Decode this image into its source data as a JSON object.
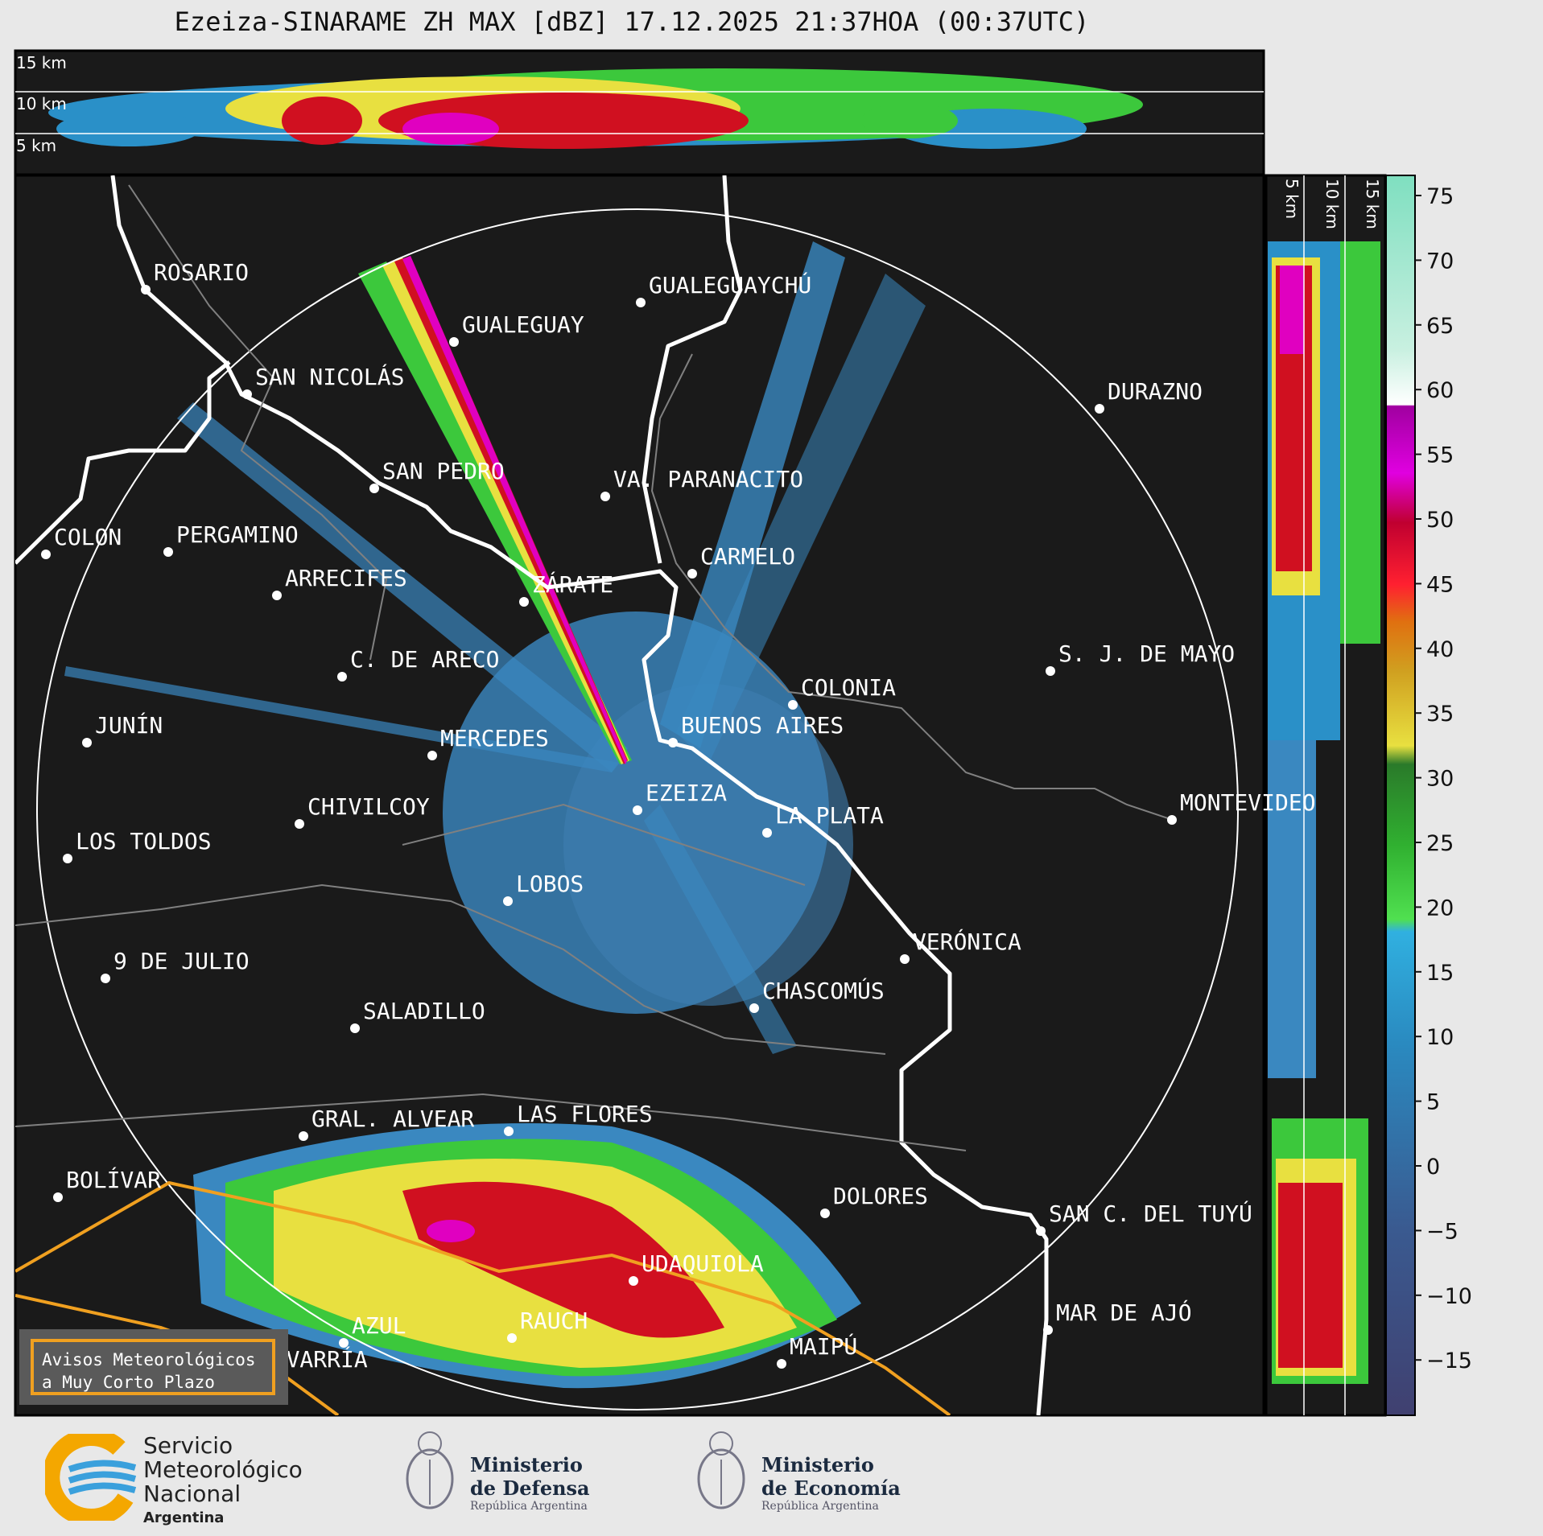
{
  "title": "Ezeiza-SINARAME ZH MAX [dBZ] 17.12.2025 21:37HOA (00:37UTC)",
  "top_panel": {
    "height_labels": [
      "15 km",
      "10 km",
      "5 km"
    ]
  },
  "side_panel": {
    "height_labels": [
      "5 km",
      "10 km",
      "15 km"
    ]
  },
  "colorbar": {
    "unit": "dBZ",
    "ticks": [
      "75",
      "70",
      "65",
      "60",
      "55",
      "50",
      "45",
      "40",
      "35",
      "30",
      "25",
      "20",
      "15",
      "10",
      "5",
      "0",
      "−5",
      "−10",
      "−15"
    ]
  },
  "cities": [
    {
      "name": "ROSARIO"
    },
    {
      "name": "GUALEGUAYCHÚ"
    },
    {
      "name": "GUALEGUAY"
    },
    {
      "name": "SAN NICOLÁS"
    },
    {
      "name": "DURAZNO"
    },
    {
      "name": "SAN PEDRO"
    },
    {
      "name": "VA. PARANACITO"
    },
    {
      "name": "COLON"
    },
    {
      "name": "PERGAMINO"
    },
    {
      "name": "CARMELO"
    },
    {
      "name": "ARRECIFES"
    },
    {
      "name": "ZÁRATE"
    },
    {
      "name": "S. J. DE MAYO"
    },
    {
      "name": "C. DE ARECO"
    },
    {
      "name": "COLONIA"
    },
    {
      "name": "JUNÍN"
    },
    {
      "name": "BUENOS AIRES"
    },
    {
      "name": "MERCEDES"
    },
    {
      "name": "MONTEVIDEO"
    },
    {
      "name": "EZEIZA"
    },
    {
      "name": "CHIVILCOY"
    },
    {
      "name": "LA PLATA"
    },
    {
      "name": "LOS TOLDOS"
    },
    {
      "name": "LOBOS"
    },
    {
      "name": "VERÓNICA"
    },
    {
      "name": "9 DE JULIO"
    },
    {
      "name": "CHASCOMÚS"
    },
    {
      "name": "SALADILLO"
    },
    {
      "name": "GRAL. ALVEAR"
    },
    {
      "name": "LAS FLORES"
    },
    {
      "name": "BOLÍVAR"
    },
    {
      "name": "DOLORES"
    },
    {
      "name": "SAN C. DEL TUYÚ"
    },
    {
      "name": "UDAQUIOLA"
    },
    {
      "name": "MAR DE AJÓ"
    },
    {
      "name": "AZUL"
    },
    {
      "name": "RAUCH"
    },
    {
      "name": "OLAVARRÍA"
    },
    {
      "name": "MAIPÚ"
    }
  ],
  "warning_button": {
    "line1": "Avisos Meteorológicos",
    "line2": "a Muy Corto Plazo"
  },
  "logos": {
    "smn": {
      "line1": "Servicio",
      "line2": "Meteorológico",
      "line3": "Nacional",
      "line4": "Argentina"
    },
    "defensa": {
      "line1": "Ministerio",
      "line2": "de Defensa",
      "line3": "República Argentina"
    },
    "economia": {
      "line1": "Ministerio",
      "line2": "de Economía",
      "line3": "República Argentina"
    }
  },
  "colors": {
    "map_bg": "#1a1a1a",
    "coast": "#ffffff",
    "border": "#808080",
    "warning_outline": "#f0a020",
    "echo_weak": "#3a88c0",
    "echo_green": "#3cc83c",
    "echo_yellow": "#e8e040",
    "echo_red": "#d01020",
    "echo_magenta": "#d000c0"
  }
}
